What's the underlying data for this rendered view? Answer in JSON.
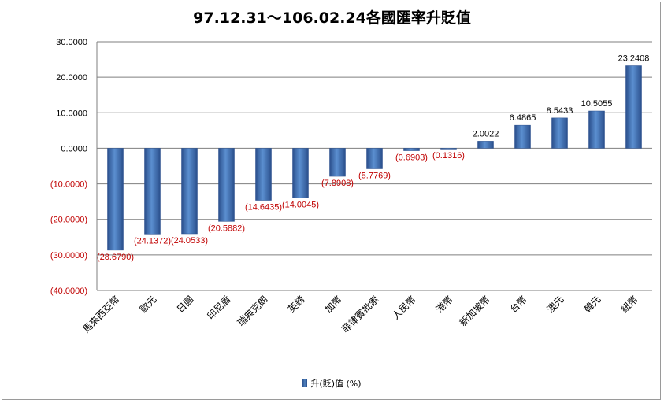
{
  "chart_data": {
    "type": "bar",
    "title": "97.12.31～106.02.24各國匯率升貶值",
    "categories": [
      "馬來西亞幣",
      "歐元",
      "日圓",
      "印尼盾",
      "瑞典克朗",
      "英鎊",
      "加幣",
      "菲律賓批索",
      "人民幣",
      "港幣",
      "新加坡幣",
      "台幣",
      "澳元",
      "韓元",
      "紐幣"
    ],
    "series": [
      {
        "name": "升(貶)值 (%)",
        "values": [
          -28.679,
          -24.1372,
          -24.0533,
          -20.5882,
          -14.6435,
          -14.0045,
          -7.8908,
          -5.7769,
          -0.6903,
          -0.1316,
          2.0022,
          6.4865,
          8.5433,
          10.5055,
          23.2408
        ]
      }
    ],
    "data_labels": [
      "(28.6790)",
      "(24.1372)",
      "(24.0533)",
      "(20.5882)",
      "(14.6435)",
      "(14.0045)",
      "(7.8908)",
      "(5.7769)",
      "(0.6903)",
      "(0.1316)",
      "2.0022",
      "6.4865",
      "8.5433",
      "10.5055",
      "23.2408"
    ],
    "y_tick_labels": [
      "30.0000",
      "20.0000",
      "10.0000",
      "0.0000",
      "(10.0000)",
      "(20.0000)",
      "(30.0000)",
      "(40.0000)"
    ],
    "y_tick_values": [
      30,
      20,
      10,
      0,
      -10,
      -20,
      -30,
      -40
    ],
    "xlabel": "",
    "ylabel": "",
    "ylim": [
      -40,
      30
    ],
    "grid": true,
    "legend_position": "bottom",
    "colors": {
      "bar": "#4f81bd",
      "bar_dark": "#2a4f8c",
      "negative_label": "#c00000",
      "positive_label": "#000000",
      "gridline": "#7f7f7f"
    }
  }
}
